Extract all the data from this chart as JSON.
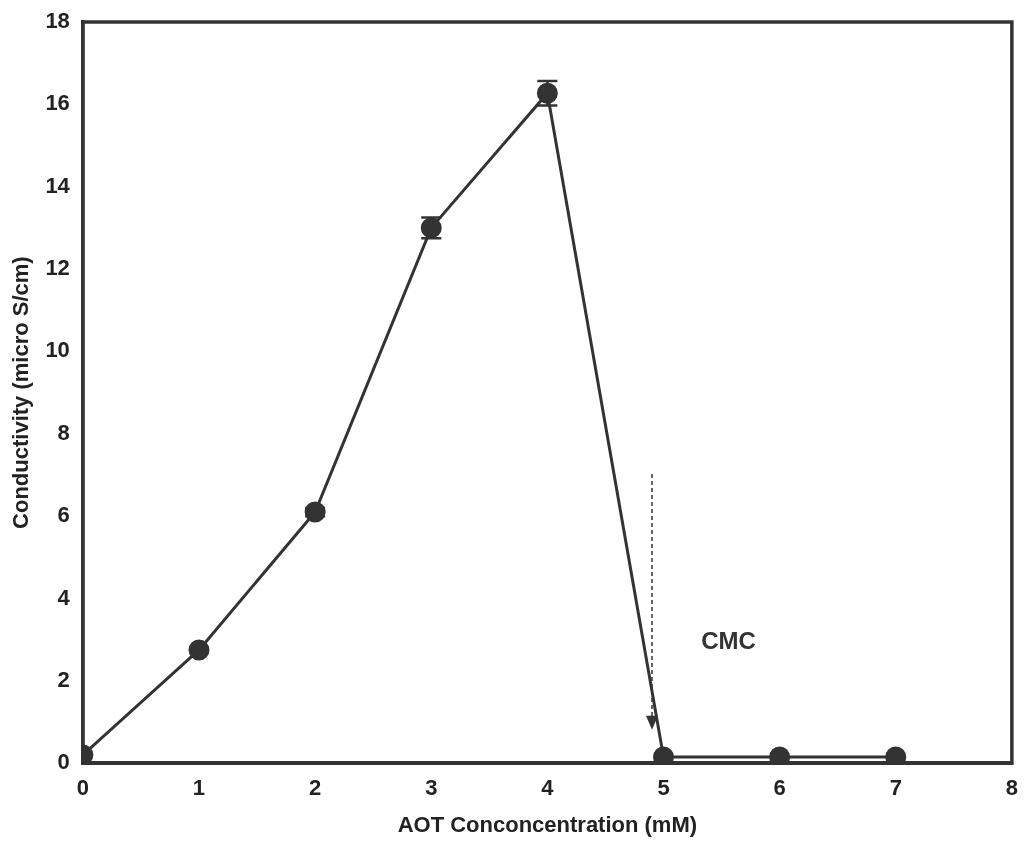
{
  "chart_data": {
    "type": "line",
    "xlabel": "AOT Conconcentration (mM)",
    "ylabel": "Conductivity (micro S/cm)",
    "x": [
      0,
      1,
      2,
      3,
      4,
      5,
      6,
      7
    ],
    "values": [
      0.2,
      2.75,
      6.1,
      13.0,
      16.27,
      0.15,
      0.15,
      0.15
    ],
    "errors": [
      null,
      null,
      0.1,
      0.25,
      0.3,
      null,
      null,
      null
    ],
    "color": "#333333",
    "marker": "circle",
    "line_style": "solid",
    "xlim": [
      0,
      8
    ],
    "xticks": [
      0,
      1,
      2,
      3,
      4,
      5,
      6,
      7,
      8
    ],
    "ylim": [
      0,
      18
    ],
    "yticks": [
      0,
      2,
      4,
      6,
      8,
      10,
      12,
      14,
      16,
      18
    ],
    "grid": false,
    "legend": false,
    "annotations": [
      "CMC"
    ]
  }
}
